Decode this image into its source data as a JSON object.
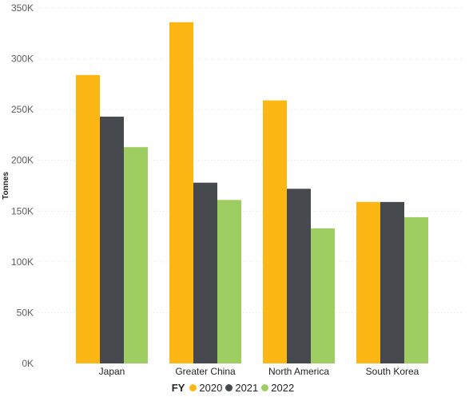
{
  "chart_data": {
    "type": "bar",
    "title": "",
    "xlabel": "",
    "ylabel": "Tonnes",
    "categories": [
      "Japan",
      "Greater China",
      "North America",
      "South Korea"
    ],
    "series": [
      {
        "name": "2020",
        "color": "#FCB714",
        "values": [
          284000,
          336000,
          259000,
          159000
        ]
      },
      {
        "name": "2021",
        "color": "#464A4F",
        "values": [
          243000,
          178000,
          172000,
          159000
        ]
      },
      {
        "name": "2022",
        "color": "#9ECE62",
        "values": [
          213000,
          161000,
          133000,
          144000
        ]
      }
    ],
    "ylim": [
      0,
      350000
    ],
    "yticks": [
      0,
      50000,
      100000,
      150000,
      200000,
      250000,
      300000,
      350000
    ],
    "ytick_labels": [
      "0K",
      "50K",
      "100K",
      "150K",
      "200K",
      "250K",
      "300K",
      "350K"
    ],
    "grid": true,
    "legend": {
      "title": "FY",
      "placement": "bottom-center"
    }
  }
}
